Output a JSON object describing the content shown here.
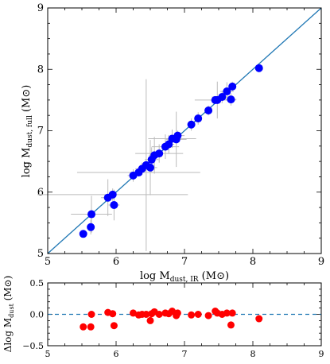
{
  "chart_data": [
    {
      "type": "scatter",
      "title": "",
      "xlabel": "log M_dust, IR (M⊙)",
      "ylabel": "log M_dust, full (M⊙)",
      "xlim": [
        5,
        9
      ],
      "ylim": [
        5,
        9
      ],
      "xticks": [
        "5",
        "6",
        "7",
        "8",
        "9"
      ],
      "yticks": [
        "5",
        "6",
        "7",
        "8",
        "9"
      ],
      "point_color": "#0000ff",
      "line_color": "#1f77b4",
      "errorbar_color": "#bbbbbb",
      "reference_line": {
        "from": [
          5,
          5
        ],
        "to": [
          9,
          9
        ]
      },
      "series": [
        {
          "points": [
            {
              "x": 5.52,
              "y": 5.32,
              "xerr": 0.05,
              "yerr": 0.06
            },
            {
              "x": 5.63,
              "y": 5.43,
              "xerr": 0.05,
              "yerr": 0.12
            },
            {
              "x": 5.64,
              "y": 5.64,
              "xerr": 0.3,
              "yerr": 0.3
            },
            {
              "x": 5.88,
              "y": 5.91,
              "xerr": 0.1,
              "yerr": 0.3
            },
            {
              "x": 5.95,
              "y": 5.96,
              "xerr": 1.1,
              "yerr": 0.1
            },
            {
              "x": 5.97,
              "y": 5.79,
              "xerr": 0.08,
              "yerr": 0.25
            },
            {
              "x": 6.25,
              "y": 6.27,
              "xerr": 0.08,
              "yerr": 0.1
            },
            {
              "x": 6.33,
              "y": 6.32,
              "xerr": 0.9,
              "yerr": 0.05
            },
            {
              "x": 6.38,
              "y": 6.38,
              "xerr": 0.1,
              "yerr": 0.1
            },
            {
              "x": 6.44,
              "y": 6.44,
              "xerr": 0.08,
              "yerr": 1.4
            },
            {
              "x": 6.5,
              "y": 6.4,
              "xerr": 0.1,
              "yerr": 0.45
            },
            {
              "x": 6.52,
              "y": 6.53,
              "xerr": 0.1,
              "yerr": 0.2
            },
            {
              "x": 6.56,
              "y": 6.6,
              "xerr": 0.08,
              "yerr": 0.3
            },
            {
              "x": 6.63,
              "y": 6.63,
              "xerr": 0.35,
              "yerr": 0.15
            },
            {
              "x": 6.72,
              "y": 6.74,
              "xerr": 0.2,
              "yerr": 0.2
            },
            {
              "x": 6.77,
              "y": 6.78,
              "xerr": 0.08,
              "yerr": 0.15
            },
            {
              "x": 6.82,
              "y": 6.87,
              "xerr": 0.35,
              "yerr": 0.15
            },
            {
              "x": 6.88,
              "y": 6.86,
              "xerr": 0.15,
              "yerr": 0.45
            },
            {
              "x": 6.9,
              "y": 6.92,
              "xerr": 0.1,
              "yerr": 0.08
            },
            {
              "x": 7.1,
              "y": 7.1,
              "xerr": 0.05,
              "yerr": 0.1
            },
            {
              "x": 7.2,
              "y": 7.2,
              "xerr": 0.05,
              "yerr": 0.1
            },
            {
              "x": 7.35,
              "y": 7.33,
              "xerr": 0.05,
              "yerr": 0.08
            },
            {
              "x": 7.45,
              "y": 7.5,
              "xerr": 0.3,
              "yerr": 0.05
            },
            {
              "x": 7.48,
              "y": 7.5,
              "xerr": 0.1,
              "yerr": 0.3
            },
            {
              "x": 7.55,
              "y": 7.55,
              "xerr": 0.15,
              "yerr": 0.1
            },
            {
              "x": 7.62,
              "y": 7.64,
              "xerr": 0.1,
              "yerr": 0.15
            },
            {
              "x": 7.68,
              "y": 7.51,
              "xerr": 0.08,
              "yerr": 0.1
            },
            {
              "x": 7.7,
              "y": 7.72,
              "xerr": 0.05,
              "yerr": 0.08
            },
            {
              "x": 8.09,
              "y": 8.02,
              "xerr": 0.05,
              "yerr": 0.06
            }
          ]
        }
      ]
    },
    {
      "type": "scatter",
      "title": "",
      "xlabel": "",
      "ylabel": "Δlog M_dust (M⊙)",
      "xlim": [
        5,
        9
      ],
      "ylim": [
        -0.5,
        0.5
      ],
      "xticks": [
        "5",
        "6",
        "7",
        "8",
        "9"
      ],
      "yticks": [
        "0.5",
        "0.0",
        "−0.5"
      ],
      "point_color": "#ff0000",
      "line_color": "#1f77b4",
      "reference_line": {
        "y": 0,
        "style": "dashed"
      },
      "series": [
        {
          "points": [
            {
              "x": 5.52,
              "y": -0.2
            },
            {
              "x": 5.63,
              "y": -0.2
            },
            {
              "x": 5.64,
              "y": 0.0
            },
            {
              "x": 5.88,
              "y": 0.03
            },
            {
              "x": 5.95,
              "y": 0.01
            },
            {
              "x": 5.97,
              "y": -0.18
            },
            {
              "x": 6.25,
              "y": 0.02
            },
            {
              "x": 6.33,
              "y": -0.01
            },
            {
              "x": 6.38,
              "y": 0.0
            },
            {
              "x": 6.44,
              "y": 0.0
            },
            {
              "x": 6.5,
              "y": -0.1
            },
            {
              "x": 6.52,
              "y": 0.01
            },
            {
              "x": 6.56,
              "y": 0.04
            },
            {
              "x": 6.63,
              "y": 0.0
            },
            {
              "x": 6.72,
              "y": 0.02
            },
            {
              "x": 6.77,
              "y": 0.01
            },
            {
              "x": 6.82,
              "y": 0.05
            },
            {
              "x": 6.88,
              "y": -0.02
            },
            {
              "x": 6.9,
              "y": 0.02
            },
            {
              "x": 7.1,
              "y": -0.01
            },
            {
              "x": 7.2,
              "y": 0.0
            },
            {
              "x": 7.35,
              "y": -0.02
            },
            {
              "x": 7.45,
              "y": 0.05
            },
            {
              "x": 7.48,
              "y": 0.02
            },
            {
              "x": 7.55,
              "y": 0.0
            },
            {
              "x": 7.62,
              "y": 0.02
            },
            {
              "x": 7.68,
              "y": -0.17
            },
            {
              "x": 7.7,
              "y": 0.02
            },
            {
              "x": 8.09,
              "y": -0.07
            }
          ]
        }
      ]
    }
  ]
}
